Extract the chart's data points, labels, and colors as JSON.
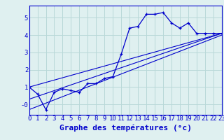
{
  "background_color": "#dff0f0",
  "grid_color": "#b8d8d8",
  "line_color": "#0000cc",
  "xlabel": "Graphe des températures (°c)",
  "xlabel_fontsize": 8,
  "tick_fontsize": 6.5,
  "ylim": [
    -0.6,
    5.7
  ],
  "xlim": [
    0,
    23
  ],
  "yticks": [
    0,
    1,
    2,
    3,
    4,
    5
  ],
  "ytick_labels": [
    "-0",
    "1",
    "2",
    "3",
    "4",
    "5"
  ],
  "xticks": [
    0,
    1,
    2,
    3,
    4,
    5,
    6,
    7,
    8,
    9,
    10,
    11,
    12,
    13,
    14,
    15,
    16,
    17,
    18,
    19,
    20,
    21,
    22,
    23
  ],
  "series1_x": [
    0,
    1,
    2,
    3,
    4,
    5,
    6,
    7,
    8,
    9,
    10,
    11,
    12,
    13,
    14,
    15,
    16,
    17,
    18,
    19,
    20,
    21,
    22,
    23
  ],
  "series1_y": [
    1.0,
    0.6,
    -0.3,
    0.7,
    0.9,
    0.8,
    0.7,
    1.2,
    1.2,
    1.5,
    1.6,
    2.9,
    4.4,
    4.5,
    5.2,
    5.2,
    5.3,
    4.7,
    4.4,
    4.7,
    4.1,
    4.1,
    4.1,
    4.1
  ],
  "series2_x": [
    0,
    23
  ],
  "series2_y": [
    1.0,
    4.1
  ],
  "series3_x": [
    0,
    23
  ],
  "series3_y": [
    0.3,
    4.1
  ],
  "series4_x": [
    0,
    23
  ],
  "series4_y": [
    -0.3,
    4.0
  ]
}
